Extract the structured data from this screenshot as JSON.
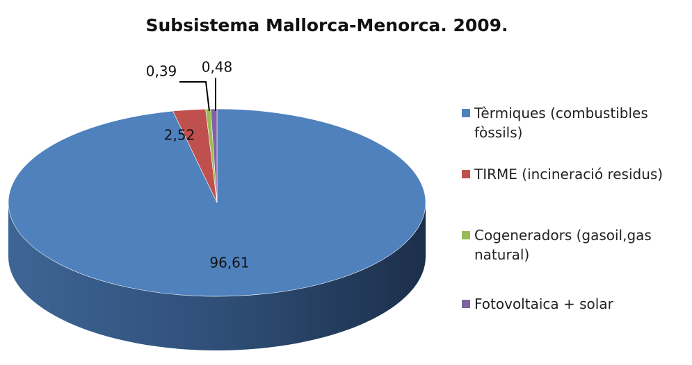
{
  "chart_data": {
    "type": "pie",
    "title": "Subsistema Mallorca-Menorca. 2009.",
    "categories": [
      "Tèrmiques (combustibles fòssils)",
      "TIRME (incineració residus)",
      "Cogeneradors (gasoil,gas natural)",
      "Fotovoltaica + solar"
    ],
    "values": [
      96.61,
      2.52,
      0.39,
      0.48
    ],
    "value_labels": [
      "96,61",
      "2,52",
      "0,39",
      "0,48"
    ],
    "colors": [
      "#4f81bd",
      "#c0504d",
      "#9bbb59",
      "#8064a2"
    ],
    "legend": "right"
  }
}
